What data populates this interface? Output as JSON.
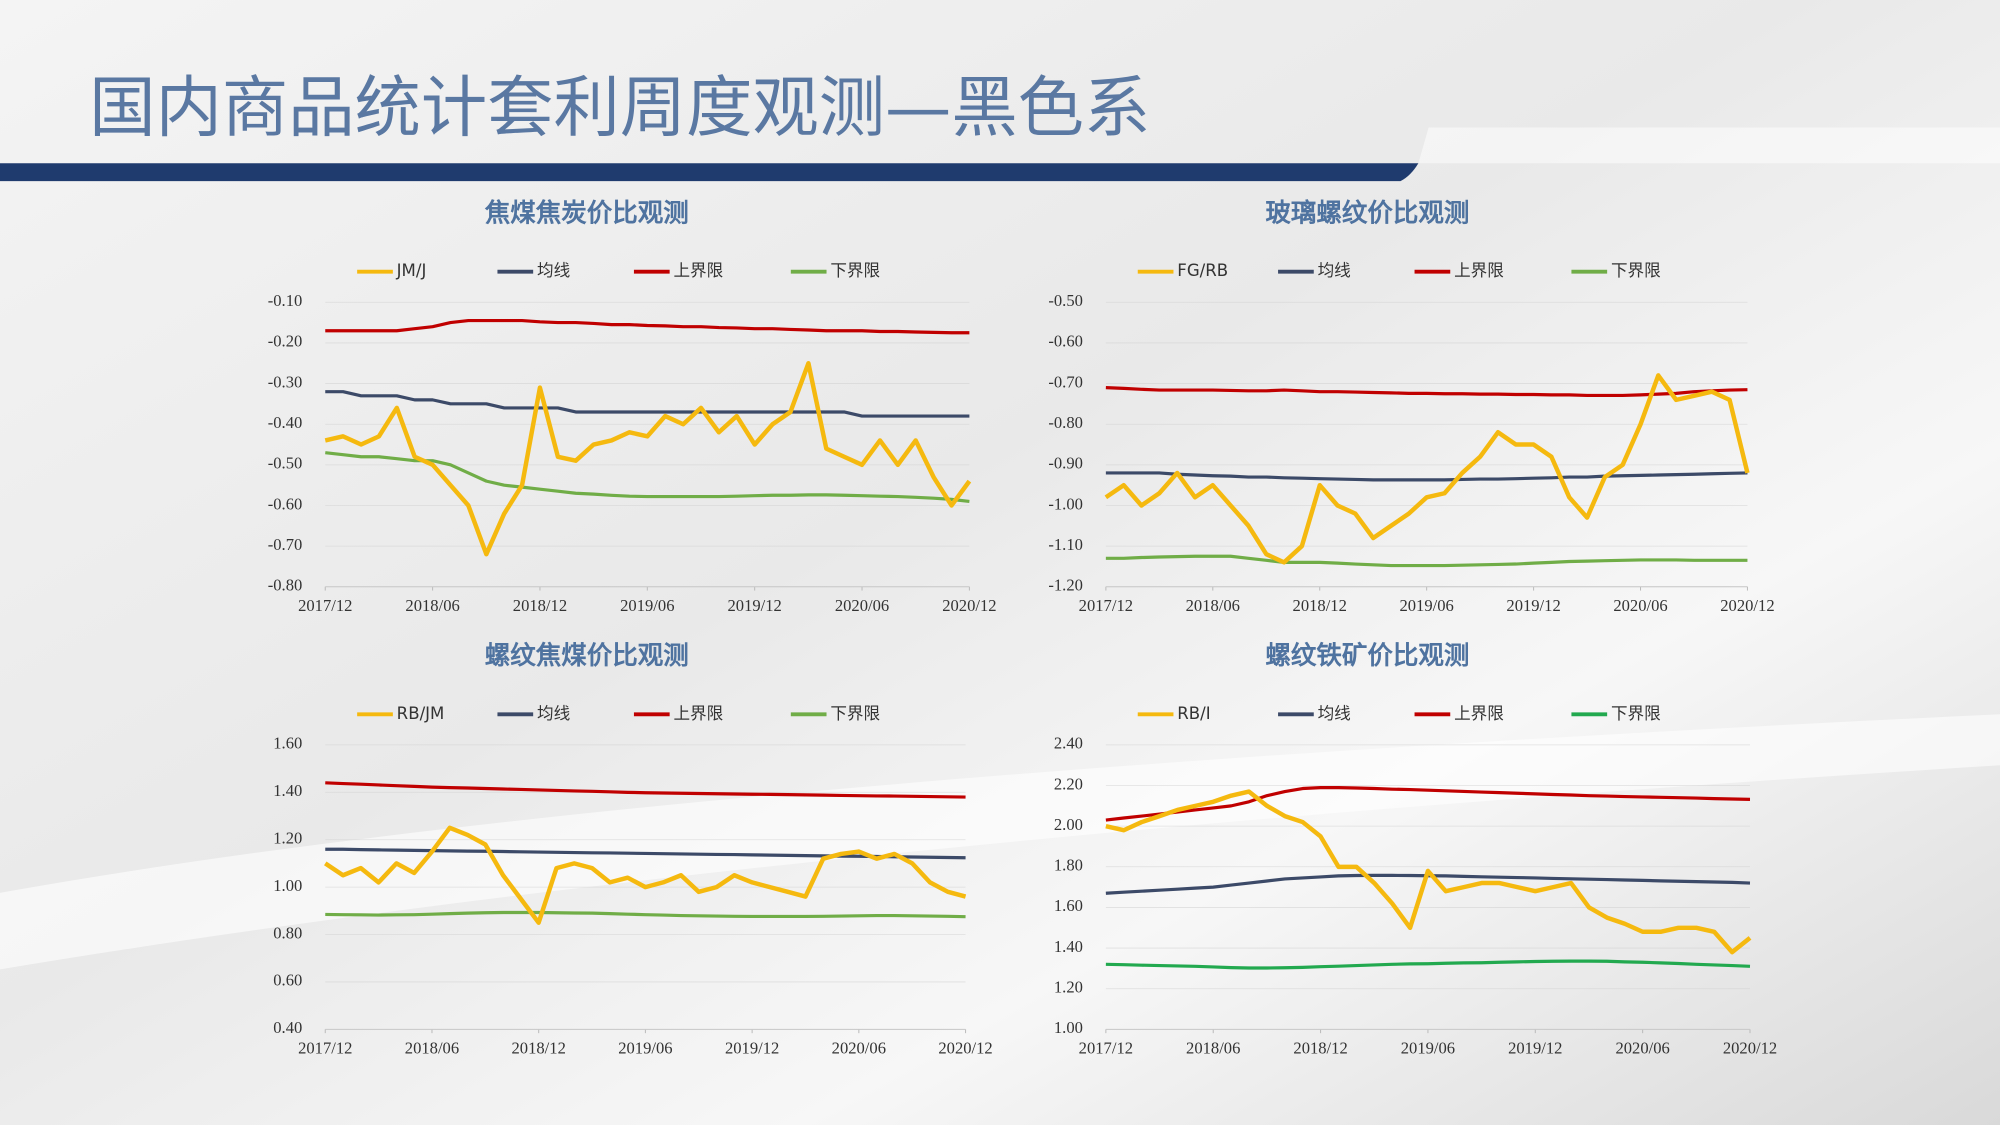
{
  "header": {
    "title": "国内商品统计套利周度观测—黑色系"
  },
  "chart_data": [
    {
      "type": "line",
      "title": "焦煤焦炭价比观测",
      "legend": "top",
      "grid": true,
      "x": [
        "2017/12",
        "2018/01",
        "2018/02",
        "2018/03",
        "2018/04",
        "2018/05",
        "2018/06",
        "2018/07",
        "2018/08",
        "2018/09",
        "2018/10",
        "2018/11",
        "2018/12",
        "2019/01",
        "2019/02",
        "2019/03",
        "2019/04",
        "2019/05",
        "2019/06",
        "2019/07",
        "2019/08",
        "2019/09",
        "2019/10",
        "2019/11",
        "2019/12",
        "2020/01",
        "2020/02",
        "2020/03",
        "2020/04",
        "2020/05",
        "2020/06",
        "2020/07",
        "2020/08",
        "2020/09",
        "2020/10",
        "2020/11",
        "2020/12"
      ],
      "xticks": [
        "2017/12",
        "2018/06",
        "2018/12",
        "2019/06",
        "2019/12",
        "2020/06",
        "2020/12"
      ],
      "ylim": [
        -0.8,
        -0.1
      ],
      "yticks": [
        {
          "value": -0.8,
          "label": "-0.80"
        },
        {
          "value": -0.7,
          "label": "-0.70"
        },
        {
          "value": -0.6,
          "label": "-0.60"
        },
        {
          "value": -0.5,
          "label": "-0.50"
        },
        {
          "value": -0.4,
          "label": "-0.40"
        },
        {
          "value": -0.3,
          "label": "-0.30"
        },
        {
          "value": -0.2,
          "label": "-0.20"
        },
        {
          "value": -0.1,
          "label": "-0.10"
        }
      ],
      "series": [
        {
          "name": "JM/J",
          "color": "#f5b90f",
          "values": [
            -0.44,
            -0.43,
            -0.45,
            -0.43,
            -0.36,
            -0.48,
            -0.5,
            -0.55,
            -0.6,
            -0.72,
            -0.62,
            -0.55,
            -0.31,
            -0.48,
            -0.49,
            -0.45,
            -0.44,
            -0.42,
            -0.43,
            -0.38,
            -0.4,
            -0.36,
            -0.42,
            -0.38,
            -0.45,
            -0.4,
            -0.37,
            -0.25,
            -0.46,
            -0.48,
            -0.5,
            -0.44,
            -0.5,
            -0.44,
            -0.53,
            -0.6,
            -0.54
          ]
        },
        {
          "name": "均线",
          "color": "#3c4a68",
          "values": [
            -0.32,
            -0.32,
            -0.33,
            -0.33,
            -0.33,
            -0.34,
            -0.34,
            -0.35,
            -0.35,
            -0.35,
            -0.36,
            -0.36,
            -0.36,
            -0.36,
            -0.37,
            -0.37,
            -0.37,
            -0.37,
            -0.37,
            -0.37,
            -0.37,
            -0.37,
            -0.37,
            -0.37,
            -0.37,
            -0.37,
            -0.37,
            -0.37,
            -0.37,
            -0.37,
            -0.38,
            -0.38,
            -0.38,
            -0.38,
            -0.38,
            -0.38,
            -0.38
          ]
        },
        {
          "name": "上界限",
          "color": "#c00000",
          "values": [
            -0.17,
            -0.17,
            -0.17,
            -0.17,
            -0.17,
            -0.165,
            -0.16,
            -0.15,
            -0.145,
            -0.145,
            -0.145,
            -0.145,
            -0.148,
            -0.15,
            -0.15,
            -0.152,
            -0.155,
            -0.155,
            -0.157,
            -0.158,
            -0.16,
            -0.16,
            -0.162,
            -0.163,
            -0.165,
            -0.165,
            -0.167,
            -0.168,
            -0.17,
            -0.17,
            -0.17,
            -0.172,
            -0.172,
            -0.173,
            -0.174,
            -0.175,
            -0.175
          ]
        },
        {
          "name": "下界限",
          "color": "#70ad47",
          "values": [
            -0.47,
            -0.475,
            -0.48,
            -0.48,
            -0.485,
            -0.49,
            -0.49,
            -0.5,
            -0.52,
            -0.54,
            -0.55,
            -0.555,
            -0.56,
            -0.565,
            -0.57,
            -0.572,
            -0.575,
            -0.577,
            -0.578,
            -0.578,
            -0.578,
            -0.578,
            -0.578,
            -0.577,
            -0.576,
            -0.575,
            -0.575,
            -0.574,
            -0.574,
            -0.575,
            -0.576,
            -0.577,
            -0.578,
            -0.58,
            -0.582,
            -0.585,
            -0.59
          ]
        }
      ]
    },
    {
      "type": "line",
      "title": "玻璃螺纹价比观测",
      "legend": "top",
      "grid": true,
      "x": [
        "2017/12",
        "2018/01",
        "2018/02",
        "2018/03",
        "2018/04",
        "2018/05",
        "2018/06",
        "2018/07",
        "2018/08",
        "2018/09",
        "2018/10",
        "2018/11",
        "2018/12",
        "2019/01",
        "2019/02",
        "2019/03",
        "2019/04",
        "2019/05",
        "2019/06",
        "2019/07",
        "2019/08",
        "2019/09",
        "2019/10",
        "2019/11",
        "2019/12",
        "2020/01",
        "2020/02",
        "2020/03",
        "2020/04",
        "2020/05",
        "2020/06",
        "2020/07",
        "2020/08",
        "2020/09",
        "2020/10",
        "2020/11",
        "2020/12"
      ],
      "xticks": [
        "2017/12",
        "2018/06",
        "2018/12",
        "2019/06",
        "2019/12",
        "2020/06",
        "2020/12"
      ],
      "ylim": [
        -1.2,
        -0.5
      ],
      "yticks": [
        {
          "value": -1.2,
          "label": "-1.20"
        },
        {
          "value": -1.1,
          "label": "-1.10"
        },
        {
          "value": -1.0,
          "label": "-1.00"
        },
        {
          "value": -0.9,
          "label": "-0.90"
        },
        {
          "value": -0.8,
          "label": "-0.80"
        },
        {
          "value": -0.7,
          "label": "-0.70"
        },
        {
          "value": -0.6,
          "label": "-0.60"
        },
        {
          "value": -0.5,
          "label": "-0.50"
        }
      ],
      "series": [
        {
          "name": "FG/RB",
          "color": "#f5b90f",
          "values": [
            -0.98,
            -0.95,
            -1.0,
            -0.97,
            -0.92,
            -0.98,
            -0.95,
            -1.0,
            -1.05,
            -1.12,
            -1.14,
            -1.1,
            -0.95,
            -1.0,
            -1.02,
            -1.08,
            -1.05,
            -1.02,
            -0.98,
            -0.97,
            -0.92,
            -0.88,
            -0.82,
            -0.85,
            -0.85,
            -0.88,
            -0.98,
            -1.03,
            -0.93,
            -0.9,
            -0.8,
            -0.68,
            -0.74,
            -0.73,
            -0.72,
            -0.74,
            -0.92
          ]
        },
        {
          "name": "均线",
          "color": "#3c4a68",
          "values": [
            -0.92,
            -0.92,
            -0.92,
            -0.92,
            -0.923,
            -0.925,
            -0.927,
            -0.928,
            -0.93,
            -0.93,
            -0.932,
            -0.933,
            -0.934,
            -0.935,
            -0.936,
            -0.937,
            -0.937,
            -0.937,
            -0.937,
            -0.937,
            -0.936,
            -0.935,
            -0.935,
            -0.934,
            -0.933,
            -0.932,
            -0.93,
            -0.93,
            -0.928,
            -0.927,
            -0.926,
            -0.925,
            -0.924,
            -0.923,
            -0.922,
            -0.921,
            -0.92
          ]
        },
        {
          "name": "上界限",
          "color": "#c00000",
          "values": [
            -0.71,
            -0.712,
            -0.714,
            -0.716,
            -0.716,
            -0.716,
            -0.716,
            -0.717,
            -0.718,
            -0.718,
            -0.716,
            -0.718,
            -0.72,
            -0.72,
            -0.721,
            -0.722,
            -0.723,
            -0.724,
            -0.724,
            -0.725,
            -0.725,
            -0.726,
            -0.726,
            -0.727,
            -0.727,
            -0.728,
            -0.728,
            -0.729,
            -0.729,
            -0.729,
            -0.728,
            -0.726,
            -0.724,
            -0.72,
            -0.718,
            -0.716,
            -0.715
          ]
        },
        {
          "name": "下界限",
          "color": "#70ad47",
          "values": [
            -1.13,
            -1.13,
            -1.128,
            -1.127,
            -1.126,
            -1.125,
            -1.125,
            -1.125,
            -1.13,
            -1.135,
            -1.14,
            -1.14,
            -1.14,
            -1.142,
            -1.144,
            -1.146,
            -1.148,
            -1.148,
            -1.148,
            -1.148,
            -1.147,
            -1.146,
            -1.145,
            -1.144,
            -1.142,
            -1.14,
            -1.138,
            -1.137,
            -1.136,
            -1.135,
            -1.134,
            -1.134,
            -1.134,
            -1.135,
            -1.135,
            -1.135,
            -1.135
          ]
        }
      ]
    },
    {
      "type": "line",
      "title": "螺纹焦煤价比观测",
      "legend": "top",
      "grid": true,
      "x": [
        "2017/12",
        "2018/01",
        "2018/02",
        "2018/03",
        "2018/04",
        "2018/05",
        "2018/06",
        "2018/07",
        "2018/08",
        "2018/09",
        "2018/10",
        "2018/11",
        "2018/12",
        "2019/01",
        "2019/02",
        "2019/03",
        "2019/04",
        "2019/05",
        "2019/06",
        "2019/07",
        "2019/08",
        "2019/09",
        "2019/10",
        "2019/11",
        "2019/12",
        "2020/01",
        "2020/02",
        "2020/03",
        "2020/04",
        "2020/05",
        "2020/06",
        "2020/07",
        "2020/08",
        "2020/09",
        "2020/10",
        "2020/11",
        "2020/12"
      ],
      "xticks": [
        "2017/12",
        "2018/06",
        "2018/12",
        "2019/06",
        "2019/12",
        "2020/06",
        "2020/12"
      ],
      "ylim": [
        0.4,
        1.6
      ],
      "yticks": [
        {
          "value": 0.4,
          "label": "0.40"
        },
        {
          "value": 0.6,
          "label": "0.60"
        },
        {
          "value": 0.8,
          "label": "0.80"
        },
        {
          "value": 1.0,
          "label": "1.00"
        },
        {
          "value": 1.2,
          "label": "1.20"
        },
        {
          "value": 1.4,
          "label": "1.40"
        },
        {
          "value": 1.6,
          "label": "1.60"
        }
      ],
      "series": [
        {
          "name": "RB/JM",
          "color": "#f5b90f",
          "values": [
            1.1,
            1.05,
            1.08,
            1.02,
            1.1,
            1.06,
            1.15,
            1.25,
            1.22,
            1.18,
            1.05,
            0.95,
            0.85,
            1.08,
            1.1,
            1.08,
            1.02,
            1.04,
            1.0,
            1.02,
            1.05,
            0.98,
            1.0,
            1.05,
            1.02,
            1.0,
            0.98,
            0.96,
            1.12,
            1.14,
            1.15,
            1.12,
            1.14,
            1.1,
            1.02,
            0.98,
            0.96
          ]
        },
        {
          "name": "均线",
          "color": "#3c4a68",
          "values": [
            1.16,
            1.16,
            1.158,
            1.157,
            1.156,
            1.155,
            1.154,
            1.153,
            1.152,
            1.151,
            1.15,
            1.149,
            1.148,
            1.147,
            1.146,
            1.145,
            1.144,
            1.143,
            1.142,
            1.141,
            1.14,
            1.139,
            1.138,
            1.137,
            1.136,
            1.135,
            1.134,
            1.133,
            1.132,
            1.131,
            1.13,
            1.129,
            1.128,
            1.127,
            1.126,
            1.125,
            1.124
          ]
        },
        {
          "name": "上界限",
          "color": "#c00000",
          "values": [
            1.44,
            1.437,
            1.434,
            1.431,
            1.428,
            1.425,
            1.422,
            1.42,
            1.418,
            1.416,
            1.414,
            1.412,
            1.41,
            1.408,
            1.406,
            1.404,
            1.402,
            1.4,
            1.398,
            1.397,
            1.396,
            1.395,
            1.394,
            1.393,
            1.392,
            1.391,
            1.39,
            1.389,
            1.388,
            1.387,
            1.386,
            1.385,
            1.384,
            1.383,
            1.382,
            1.381,
            1.38
          ]
        },
        {
          "name": "下界限",
          "color": "#70ad47",
          "values": [
            0.885,
            0.884,
            0.883,
            0.882,
            0.883,
            0.884,
            0.886,
            0.888,
            0.89,
            0.892,
            0.893,
            0.893,
            0.893,
            0.892,
            0.891,
            0.89,
            0.888,
            0.886,
            0.884,
            0.882,
            0.88,
            0.879,
            0.878,
            0.877,
            0.876,
            0.876,
            0.876,
            0.876,
            0.877,
            0.878,
            0.879,
            0.88,
            0.88,
            0.879,
            0.878,
            0.877,
            0.875
          ]
        }
      ]
    },
    {
      "type": "line",
      "title": "螺纹铁矿价比观测",
      "legend": "top",
      "grid": true,
      "x": [
        "2017/12",
        "2018/01",
        "2018/02",
        "2018/03",
        "2018/04",
        "2018/05",
        "2018/06",
        "2018/07",
        "2018/08",
        "2018/09",
        "2018/10",
        "2018/11",
        "2018/12",
        "2019/01",
        "2019/02",
        "2019/03",
        "2019/04",
        "2019/05",
        "2019/06",
        "2019/07",
        "2019/08",
        "2019/09",
        "2019/10",
        "2019/11",
        "2019/12",
        "2020/01",
        "2020/02",
        "2020/03",
        "2020/04",
        "2020/05",
        "2020/06",
        "2020/07",
        "2020/08",
        "2020/09",
        "2020/10",
        "2020/11",
        "2020/12"
      ],
      "xticks": [
        "2017/12",
        "2018/06",
        "2018/12",
        "2019/06",
        "2019/12",
        "2020/06",
        "2020/12"
      ],
      "ylim": [
        1.0,
        2.4
      ],
      "yticks": [
        {
          "value": 1.0,
          "label": "1.00"
        },
        {
          "value": 1.2,
          "label": "1.20"
        },
        {
          "value": 1.4,
          "label": "1.40"
        },
        {
          "value": 1.6,
          "label": "1.60"
        },
        {
          "value": 1.8,
          "label": "1.80"
        },
        {
          "value": 2.0,
          "label": "2.00"
        },
        {
          "value": 2.2,
          "label": "2.20"
        },
        {
          "value": 2.4,
          "label": "2.40"
        }
      ],
      "series": [
        {
          "name": "RB/I",
          "color": "#f5b90f",
          "values": [
            2.0,
            1.98,
            2.02,
            2.05,
            2.08,
            2.1,
            2.12,
            2.15,
            2.17,
            2.1,
            2.05,
            2.02,
            1.95,
            1.8,
            1.8,
            1.72,
            1.62,
            1.5,
            1.78,
            1.68,
            1.7,
            1.72,
            1.72,
            1.7,
            1.68,
            1.7,
            1.72,
            1.6,
            1.55,
            1.52,
            1.48,
            1.48,
            1.5,
            1.5,
            1.48,
            1.38,
            1.45
          ]
        },
        {
          "name": "均线",
          "color": "#3c4a68",
          "values": [
            1.67,
            1.675,
            1.68,
            1.685,
            1.69,
            1.695,
            1.7,
            1.71,
            1.72,
            1.73,
            1.74,
            1.745,
            1.75,
            1.755,
            1.757,
            1.758,
            1.758,
            1.757,
            1.756,
            1.755,
            1.753,
            1.751,
            1.749,
            1.747,
            1.745,
            1.743,
            1.741,
            1.739,
            1.737,
            1.735,
            1.733,
            1.731,
            1.729,
            1.727,
            1.725,
            1.723,
            1.72
          ]
        },
        {
          "name": "上界限",
          "color": "#c00000",
          "values": [
            2.03,
            2.04,
            2.05,
            2.06,
            2.07,
            2.08,
            2.09,
            2.1,
            2.12,
            2.15,
            2.17,
            2.185,
            2.19,
            2.19,
            2.188,
            2.185,
            2.182,
            2.18,
            2.177,
            2.174,
            2.171,
            2.168,
            2.165,
            2.162,
            2.159,
            2.156,
            2.153,
            2.15,
            2.148,
            2.146,
            2.144,
            2.142,
            2.14,
            2.138,
            2.136,
            2.134,
            2.132
          ]
        },
        {
          "name": "下界限",
          "color": "#22a94f",
          "values": [
            1.32,
            1.318,
            1.316,
            1.314,
            1.312,
            1.31,
            1.307,
            1.304,
            1.302,
            1.302,
            1.303,
            1.305,
            1.308,
            1.311,
            1.314,
            1.317,
            1.32,
            1.322,
            1.323,
            1.325,
            1.327,
            1.328,
            1.33,
            1.332,
            1.334,
            1.335,
            1.336,
            1.336,
            1.335,
            1.332,
            1.33,
            1.327,
            1.324,
            1.32,
            1.317,
            1.314,
            1.31
          ]
        }
      ]
    }
  ]
}
